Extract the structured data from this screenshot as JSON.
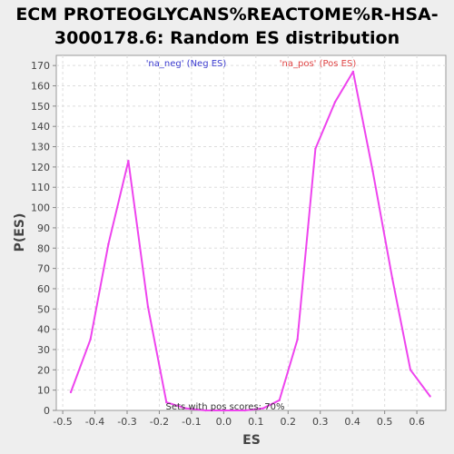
{
  "chart_data": {
    "type": "line",
    "title_lines": [
      "ECM PROTEOGLYCANS%REACTOME%R-HSA-",
      "3000178.6: Random ES distribution"
    ],
    "xlabel": "ES",
    "ylabel": "P(ES)",
    "xlim": [
      -0.52,
      0.69
    ],
    "ylim": [
      0,
      175
    ],
    "x_ticks": [
      -0.5,
      -0.4,
      -0.3,
      -0.2,
      -0.1,
      0.0,
      0.1,
      0.2,
      0.3,
      0.4,
      0.5,
      0.6
    ],
    "x_tick_labels": [
      "-0.5",
      "-0.4",
      "-0.3",
      "-0.2",
      "-0.1",
      "0.0",
      "0.1",
      "0.2",
      "0.3",
      "0.4",
      "0.5",
      "0.6"
    ],
    "y_ticks": [
      0,
      10,
      20,
      30,
      40,
      50,
      60,
      70,
      80,
      90,
      100,
      110,
      120,
      130,
      140,
      150,
      160,
      170
    ],
    "grid": true,
    "series": [
      {
        "name": "Random ES distribution",
        "color": "#ee44ee",
        "x": [
          -0.475,
          -0.414,
          -0.358,
          -0.296,
          -0.235,
          -0.178,
          -0.117,
          -0.056,
          0.005,
          0.066,
          0.122,
          0.173,
          0.229,
          0.285,
          0.346,
          0.402,
          0.463,
          0.524,
          0.58,
          0.641
        ],
        "y": [
          9,
          35,
          82,
          123,
          51,
          4,
          1,
          0,
          0,
          0,
          1,
          5,
          35,
          129,
          152,
          167,
          118,
          65,
          20,
          7
        ]
      }
    ],
    "legend": {
      "neg_label": "'na_neg' (Neg ES)",
      "pos_label": "'na_pos' (Pos ES)",
      "neg_color": "#3a3acf",
      "pos_color": "#e04545"
    },
    "annotation": "Sets with pos scores: 70%"
  }
}
